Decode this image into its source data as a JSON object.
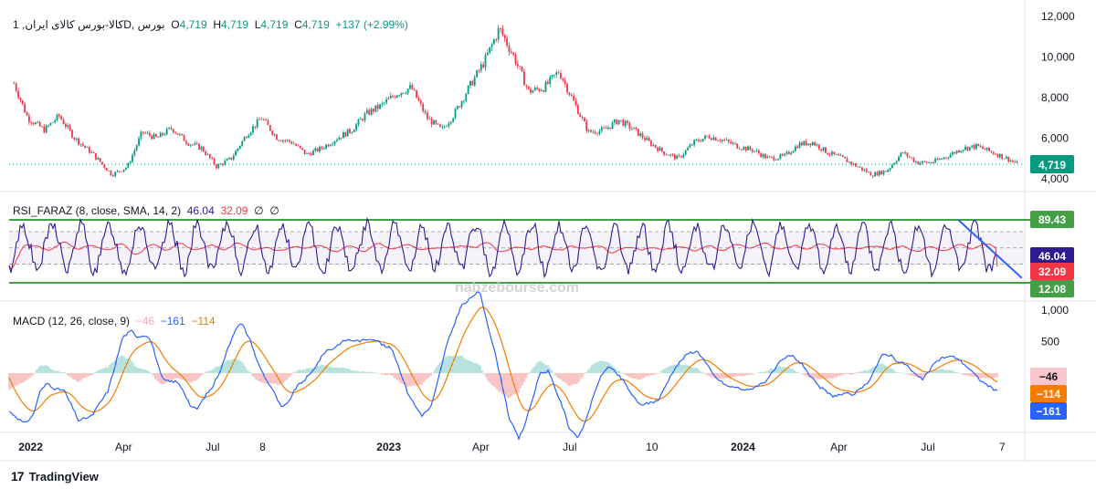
{
  "main_legend": {
    "symbol": "کالا-بورس کالای ایران, 1D, بورس",
    "o_label": "O",
    "o": "4,719",
    "h_label": "H",
    "h": "4,719",
    "l_label": "L",
    "l": "4,719",
    "c_label": "C",
    "c": "4,719",
    "change": "+137 (+2.99%)"
  },
  "rsi_legend": {
    "name": "RSI_FARAZ (8, close, SMA, 14, 2)",
    "v1": "46.04",
    "v2": "32.09",
    "v3": "∅",
    "v4": "∅"
  },
  "macd_legend": {
    "name": "MACD (12, 26, close, 9)",
    "hist": "−46",
    "macd": "−161",
    "signal": "−114"
  },
  "branding": {
    "tv": "TradingView",
    "watermark": "nabzebourse.com"
  },
  "colors": {
    "up": "#089981",
    "down": "#f23645",
    "rsi": "#311b92",
    "rsi_ma": "#f23645",
    "macd": "#2962ff",
    "signal": "#f57c00",
    "level": "#43a047"
  },
  "chart_data": [
    {
      "type": "candlestick",
      "title": "کالا-بورس کالای ایران, 1D, بورس",
      "x_ticks": [
        "2022",
        "Apr",
        "Jul",
        "8",
        "2023",
        "Apr",
        "Jul",
        "10",
        "2024",
        "Apr",
        "Jul",
        "7"
      ],
      "y_ticks": [
        "12,000",
        "10,000",
        "8,000",
        "6,000",
        "4,000"
      ],
      "ylim": [
        4000,
        12000
      ],
      "last_price": "4,719",
      "close_series": {
        "x": [
          "2021-12-10",
          "2021-12-24",
          "2022-01-10",
          "2022-01-25",
          "2022-02-10",
          "2022-03-01",
          "2022-03-20",
          "2022-04-05",
          "2022-04-20",
          "2022-05-05",
          "2022-05-20",
          "2022-06-05",
          "2022-06-20",
          "2022-07-05",
          "2022-07-20",
          "2022-08-05",
          "2022-08-20",
          "2022-09-05",
          "2022-09-20",
          "2022-10-05",
          "2022-10-20",
          "2022-11-05",
          "2022-11-20",
          "2022-12-05",
          "2022-12-20",
          "2023-01-05",
          "2023-01-20",
          "2023-02-05",
          "2023-02-20",
          "2023-03-05",
          "2023-03-20",
          "2023-04-05",
          "2023-04-20",
          "2023-05-05",
          "2023-05-20",
          "2023-06-05",
          "2023-06-20",
          "2023-07-05",
          "2023-07-20",
          "2023-08-05",
          "2023-08-20",
          "2023-09-05",
          "2023-09-20",
          "2023-10-05",
          "2023-10-20",
          "2023-11-05",
          "2023-11-20",
          "2023-12-05",
          "2023-12-20",
          "2024-01-05",
          "2024-01-20",
          "2024-02-05",
          "2024-02-20",
          "2024-03-05",
          "2024-03-20",
          "2024-04-05",
          "2024-04-20",
          "2024-05-05",
          "2024-05-20",
          "2024-06-05",
          "2024-06-20",
          "2024-07-05",
          "2024-07-20",
          "2024-08-05",
          "2024-08-20",
          "2024-09-05",
          "2024-09-20",
          "2024-10-01"
        ],
        "y": [
          8700,
          7000,
          6400,
          7100,
          6000,
          5200,
          4200,
          4600,
          6300,
          6000,
          6500,
          5800,
          5500,
          4600,
          5000,
          6200,
          7000,
          6000,
          5800,
          5200,
          5500,
          6000,
          6400,
          7200,
          7600,
          8200,
          8500,
          7000,
          6400,
          7200,
          8500,
          9800,
          11400,
          10000,
          8300,
          8500,
          9300,
          7800,
          6300,
          6400,
          6900,
          6400,
          5800,
          5300,
          5000,
          5800,
          6100,
          5900,
          5600,
          5400,
          5000,
          5100,
          5700,
          5800,
          5300,
          5000,
          4600,
          4200,
          4400,
          5300,
          4800,
          4800,
          5100,
          5500,
          5600,
          5300,
          5000,
          4719
        ]
      }
    },
    {
      "type": "line",
      "title": "RSI_FARAZ (8, close, SMA, 14, 2)",
      "y_ticks": [
        "89.43",
        "46.04",
        "32.09",
        "12.08"
      ],
      "levels": [
        89.43,
        12.08
      ],
      "series": [
        {
          "name": "RSI",
          "last": 46.04
        },
        {
          "name": "SMA",
          "last": 32.09
        }
      ],
      "trendline": {
        "from": [
          "2024-08-01",
          89.43
        ],
        "to": [
          "2024-10-05",
          18
        ]
      }
    },
    {
      "type": "line",
      "title": "MACD (12, 26, close, 9)",
      "y_ticks": [
        "1,000",
        "500"
      ],
      "ylim": [
        -900,
        1000
      ],
      "series": [
        {
          "name": "Histogram",
          "last": -46
        },
        {
          "name": "MACD",
          "last": -161
        },
        {
          "name": "Signal",
          "last": -114
        }
      ]
    }
  ]
}
